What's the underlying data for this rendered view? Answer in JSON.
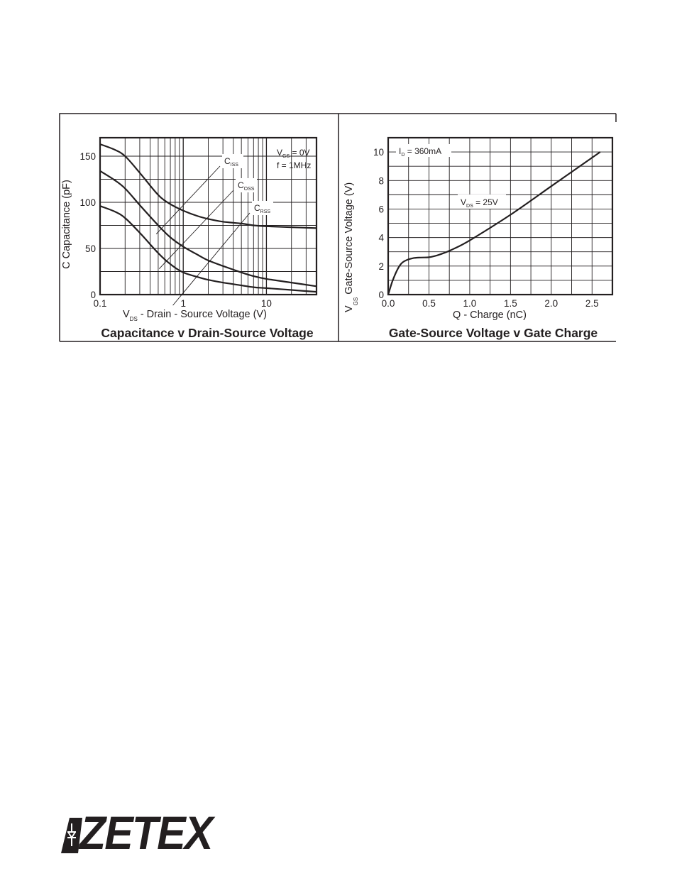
{
  "chart_data": [
    {
      "type": "line",
      "title": "Capacitance v Drain-Source Voltage",
      "xlabel": {
        "main": "V",
        "sub": "DS",
        "rest": " - Drain - Source Voltage (V)"
      },
      "ylabel": "C  Capacitance (pF)",
      "x_scale": "log",
      "xlim": [
        0.1,
        40
      ],
      "ylim": [
        0,
        170
      ],
      "x_ticks": [
        0.1,
        1,
        10
      ],
      "x_tick_labels": [
        "0.1",
        "1",
        "10"
      ],
      "y_ticks": [
        0,
        50,
        100,
        150
      ],
      "y_tick_labels": [
        "0",
        "50",
        "100",
        "150"
      ],
      "grid": true,
      "conditions": [
        {
          "main": "V",
          "sub": "GS",
          "rest": " = 0V"
        },
        {
          "main": "f = 1MHz",
          "sub": "",
          "rest": ""
        }
      ],
      "series": [
        {
          "name": {
            "main": "C",
            "sub": "ISS"
          },
          "x": [
            0.1,
            0.15,
            0.2,
            0.3,
            0.5,
            0.7,
            1,
            1.5,
            2,
            3,
            5,
            7,
            10,
            20,
            40
          ],
          "y": [
            163,
            157,
            150,
            132,
            108,
            98,
            91,
            85,
            82,
            79,
            77,
            75,
            74,
            73,
            72
          ]
        },
        {
          "name": {
            "main": "C",
            "sub": "OSS"
          },
          "x": [
            0.1,
            0.15,
            0.2,
            0.3,
            0.5,
            0.7,
            1,
            1.5,
            2,
            3,
            5,
            7,
            10,
            20,
            40
          ],
          "y": [
            134,
            124,
            115,
            97,
            75,
            62,
            52,
            43,
            37,
            31,
            24,
            20,
            17,
            13,
            9
          ]
        },
        {
          "name": {
            "main": "C",
            "sub": "RSS"
          },
          "x": [
            0.1,
            0.15,
            0.2,
            0.3,
            0.5,
            0.7,
            1,
            1.5,
            2,
            3,
            5,
            7,
            10,
            20,
            40
          ],
          "y": [
            96,
            90,
            83,
            67,
            45,
            33,
            24,
            19,
            16,
            13,
            10,
            8,
            7,
            5,
            3
          ]
        }
      ]
    },
    {
      "type": "line",
      "title": "Gate-Source Voltage v Gate Charge",
      "xlabel": {
        "main": "Q - Charge (nC)",
        "sub": "",
        "rest": ""
      },
      "ylabel": {
        "main": "V",
        "sub": "GS",
        "rest": "  Gate-Source Voltage (V)"
      },
      "xlim": [
        0,
        2.75
      ],
      "ylim": [
        0,
        11
      ],
      "x_ticks": [
        0,
        0.5,
        1.0,
        1.5,
        2.0,
        2.5
      ],
      "x_tick_labels": [
        "0.0",
        "0.5",
        "1.0",
        "1.5",
        "2.0",
        "2.5"
      ],
      "y_ticks": [
        0,
        2,
        4,
        6,
        8,
        10
      ],
      "y_tick_labels": [
        "0",
        "2",
        "4",
        "6",
        "8",
        "10"
      ],
      "grid": true,
      "conditions": [
        {
          "main": "I",
          "sub": "D",
          "rest": " = 360mA"
        },
        {
          "main": "V",
          "sub": "DS",
          "rest": " = 25V"
        }
      ],
      "series": [
        {
          "name": "",
          "x": [
            0,
            0.05,
            0.1,
            0.15,
            0.2,
            0.3,
            0.4,
            0.5,
            0.6,
            0.7,
            0.8,
            1.0,
            1.5,
            2.0,
            2.5,
            2.6
          ],
          "y": [
            0,
            0.9,
            1.6,
            2.1,
            2.35,
            2.55,
            2.6,
            2.62,
            2.75,
            2.95,
            3.2,
            3.8,
            5.6,
            7.6,
            9.6,
            10.0
          ]
        }
      ]
    }
  ],
  "logo": {
    "text": "ZETEX"
  }
}
